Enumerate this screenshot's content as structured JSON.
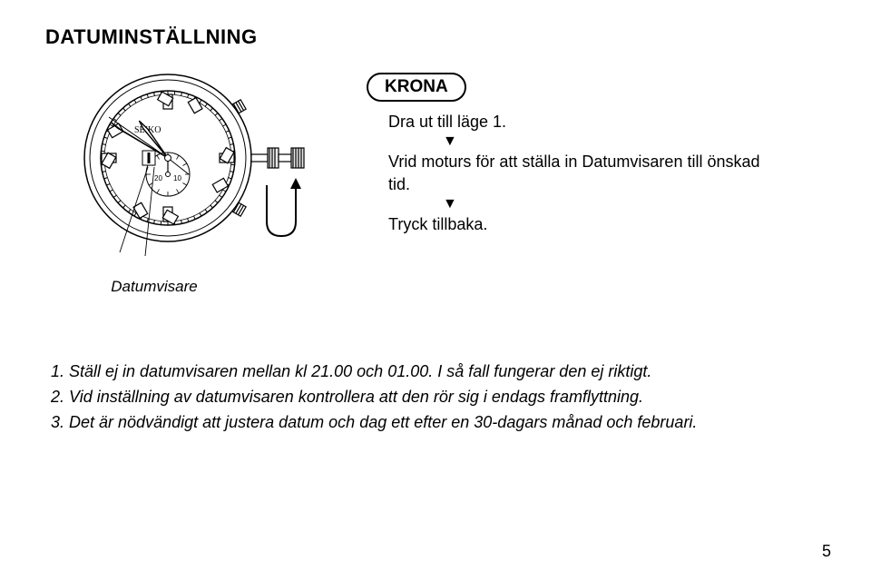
{
  "title": "DATUMINSTÄLLNING",
  "krona_label": "KRONA",
  "step1": "Dra ut till läge 1.",
  "step2": "Vrid moturs för att ställa in Datumvisaren till önskad tid.",
  "step3": "Tryck tillbaka.",
  "arrow_down": "▼",
  "caption": "Datumvisare",
  "note1": "1. Ställ ej in datumvisaren mellan kl 21.00 och 01.00. I så fall fungerar den ej riktigt.",
  "note2": "2. Vid inställning av datumvisaren kontrollera att den rör sig i endags framflyttning.",
  "note3": "3. Det är nödvändigt att justera datum och dag ett efter en 30-dagars månad och februari.",
  "page_number": "5",
  "watch": {
    "brand": "SEIKO",
    "subdial_20": "20",
    "subdial_10": "10",
    "colors": {
      "stroke": "#000000",
      "fill": "#ffffff",
      "gray_fill": "#e8e8e8"
    }
  }
}
